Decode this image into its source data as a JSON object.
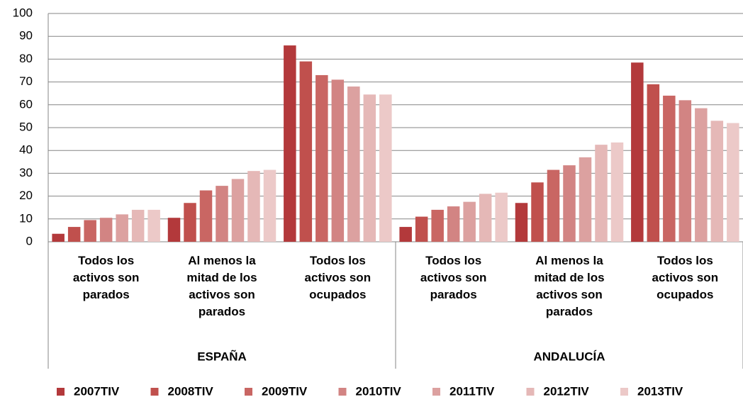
{
  "chart_data": {
    "type": "bar",
    "categories": [
      "Todos los activos son parados",
      "Al menos la mitad de los activos son parados",
      "Todos los activos son ocupados",
      "Todos los activos son parados",
      "Al menos la mitad de los activos son parados",
      "Todos los activos son ocupados"
    ],
    "groups": [
      "ESPAÑA",
      "ANDALUCÍA"
    ],
    "series": [
      {
        "name": "2007TIV",
        "color": "#b3393b",
        "values": [
          3.5,
          10.5,
          86,
          6.5,
          17,
          78.5
        ]
      },
      {
        "name": "2008TIV",
        "color": "#c0504d",
        "values": [
          6.5,
          17,
          79,
          11,
          26,
          69
        ]
      },
      {
        "name": "2009TIV",
        "color": "#c96663",
        "values": [
          9.5,
          22.5,
          73,
          14,
          31.5,
          64
        ]
      },
      {
        "name": "2010TIV",
        "color": "#d28483",
        "values": [
          10.5,
          24.5,
          71,
          15.5,
          33.5,
          62
        ]
      },
      {
        "name": "2011TIV",
        "color": "#dca1a0",
        "values": [
          12,
          27.5,
          68,
          17.5,
          37,
          58.5
        ]
      },
      {
        "name": "2012TIV",
        "color": "#e5b8b7",
        "values": [
          14,
          31,
          64.5,
          21,
          42.5,
          53
        ]
      },
      {
        "name": "2013TIV",
        "color": "#ecc9c8",
        "values": [
          14,
          31.5,
          64.5,
          21.5,
          43.5,
          52
        ]
      }
    ],
    "ylim": [
      0,
      100
    ],
    "yticks": [
      0,
      10,
      20,
      30,
      40,
      50,
      60,
      70,
      80,
      90,
      100
    ],
    "grid": true,
    "legend": "bottom"
  }
}
